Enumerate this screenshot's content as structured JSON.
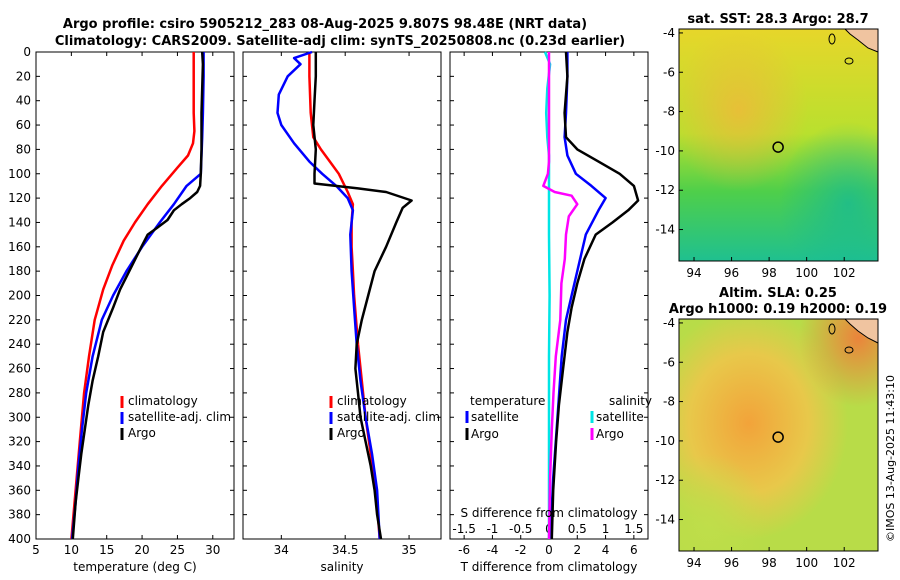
{
  "header": {
    "title_line1": "Argo profile: csiro 5905212_283 08-Aug-2025 9.807S 98.48E (NRT data)",
    "title_line2": "Climatology: CARS2009. Satellite-adj clim: synTS_20250808.nc (0.23d earlier)"
  },
  "colors": {
    "climatology": "#ff0000",
    "satellite": "#0000ff",
    "argo": "#000000",
    "sal_satellite": "#00e5e5",
    "sal_argo": "#ff00ff"
  },
  "watermark": "©IMOS 13-Aug-2025 11:43:10",
  "chart_data": [
    {
      "id": "temperature",
      "type": "line",
      "xlabel": "temperature (deg C)",
      "ylabel": "",
      "xlim": [
        5,
        33
      ],
      "ylim": [
        0,
        400
      ],
      "xticks": [
        5,
        10,
        15,
        20,
        25,
        30
      ],
      "yticks": [
        0,
        20,
        40,
        60,
        80,
        100,
        120,
        140,
        160,
        180,
        200,
        220,
        240,
        260,
        280,
        300,
        320,
        340,
        360,
        380,
        400
      ],
      "legend": [
        "climatology",
        "satellite-adj. clim",
        "Argo"
      ],
      "series": [
        {
          "name": "climatology",
          "color": "#ff0000",
          "x": [
            27.3,
            27.3,
            27.3,
            27.4,
            27.2,
            26.5,
            25.0,
            22.8,
            20.8,
            19.0,
            17.4,
            15.8,
            14.5,
            13.3,
            12.5,
            11.8,
            11.2,
            10.6,
            10.0
          ],
          "y": [
            0,
            20,
            50,
            65,
            75,
            85,
            95,
            110,
            125,
            140,
            155,
            175,
            195,
            220,
            250,
            280,
            320,
            360,
            400
          ]
        },
        {
          "name": "satellite-adj. clim",
          "color": "#0000ff",
          "x": [
            28.7,
            28.7,
            28.6,
            28.5,
            28.4,
            28.3,
            26.3,
            24.5,
            22.5,
            20.0,
            17.8,
            15.9,
            14.3,
            13.0,
            12.1,
            11.5,
            11.0,
            10.6,
            10.1
          ],
          "y": [
            0,
            20,
            50,
            70,
            85,
            100,
            110,
            125,
            140,
            160,
            180,
            200,
            220,
            250,
            280,
            310,
            340,
            370,
            400
          ]
        },
        {
          "name": "Argo",
          "color": "#000000",
          "x": [
            28.5,
            28.6,
            28.5,
            28.4,
            28.4,
            28.3,
            28.2,
            27.8,
            26.8,
            25.6,
            24.5,
            23.6,
            22.0,
            20.8,
            19.9,
            18.2,
            16.9,
            15.9,
            14.5,
            13.8,
            13.0,
            12.4,
            11.9,
            11.4,
            11.0,
            10.6,
            10.2
          ],
          "y": [
            0,
            10,
            30,
            50,
            80,
            100,
            110,
            115,
            120,
            125,
            130,
            138,
            145,
            150,
            160,
            180,
            195,
            210,
            230,
            250,
            270,
            290,
            310,
            330,
            350,
            370,
            400
          ]
        }
      ]
    },
    {
      "id": "salinity",
      "type": "line",
      "xlabel": "salinity",
      "xlim": [
        33.7,
        35.25
      ],
      "ylim": [
        0,
        400
      ],
      "xticks": [
        34,
        34.5,
        35
      ],
      "legend": [
        "climatology",
        "satellite-adj. clim",
        "Argo"
      ],
      "series": [
        {
          "name": "climatology",
          "color": "#ff0000",
          "x": [
            34.22,
            34.22,
            34.23,
            34.25,
            34.31,
            34.38,
            34.45,
            34.52,
            34.56,
            34.55,
            34.55,
            34.56,
            34.57,
            34.6,
            34.63,
            34.66,
            34.7,
            34.74,
            34.77
          ],
          "y": [
            0,
            20,
            50,
            70,
            80,
            90,
            100,
            115,
            125,
            140,
            160,
            180,
            200,
            240,
            270,
            300,
            330,
            360,
            400
          ]
        },
        {
          "name": "satellite-adj. clim",
          "color": "#0000ff",
          "x": [
            34.24,
            34.1,
            34.15,
            34.05,
            33.98,
            33.97,
            34.0,
            34.1,
            34.22,
            34.32,
            34.43,
            34.52,
            34.56,
            34.54,
            34.55,
            34.57,
            34.59,
            34.62,
            34.66,
            34.71,
            34.75,
            34.77
          ],
          "y": [
            0,
            5,
            10,
            20,
            35,
            50,
            60,
            75,
            90,
            100,
            110,
            120,
            130,
            150,
            180,
            210,
            240,
            270,
            300,
            330,
            360,
            400
          ]
        },
        {
          "name": "Argo",
          "color": "#000000",
          "x": [
            34.27,
            34.27,
            34.26,
            34.25,
            34.27,
            34.26,
            34.26,
            34.6,
            34.82,
            35.02,
            34.95,
            34.9,
            34.82,
            34.73,
            34.68,
            34.63,
            34.59,
            34.58,
            34.6,
            34.62,
            34.66,
            34.7,
            34.73,
            34.75,
            34.78
          ],
          "y": [
            0,
            20,
            40,
            60,
            80,
            100,
            108,
            112,
            115,
            122,
            128,
            140,
            160,
            180,
            200,
            220,
            240,
            260,
            280,
            300,
            320,
            340,
            360,
            380,
            400
          ]
        }
      ]
    },
    {
      "id": "differences",
      "type": "line",
      "xlabel": "T difference from climatology",
      "top_label": "S difference from climatology",
      "xlim": [
        -7,
        7
      ],
      "ylim": [
        0,
        400
      ],
      "xticks": [
        -6,
        -4,
        -2,
        0,
        2,
        4,
        6
      ],
      "top_ticks": [
        -1.5,
        -1,
        -0.5,
        0,
        0.5,
        1,
        1.5
      ],
      "top_tick_labels": [
        "-1.5",
        "-1",
        "-0.5",
        "0",
        "0.5",
        "1",
        "1.5"
      ],
      "legend": {
        "temperature_header": "temperature",
        "salinity_header": "salinity",
        "temperature_items": [
          "satellite",
          "Argo"
        ],
        "salinity_items": [
          "satellite",
          "Argo"
        ]
      },
      "series": [
        {
          "name": "temperature satellite",
          "color": "#0000ff",
          "x": [
            1.3,
            1.3,
            1.2,
            1.1,
            1.3,
            1.9,
            3.0,
            4.0,
            3.5,
            2.6,
            2.0,
            1.6,
            1.2,
            0.9,
            0.6,
            0.3,
            0.1
          ],
          "y": [
            0,
            20,
            50,
            70,
            85,
            100,
            110,
            120,
            130,
            150,
            180,
            200,
            220,
            250,
            300,
            350,
            400
          ]
        },
        {
          "name": "temperature Argo",
          "color": "#000000",
          "x": [
            1.2,
            1.3,
            1.1,
            1.2,
            2.0,
            3.5,
            5.0,
            6.0,
            6.3,
            5.6,
            4.5,
            3.3,
            2.5,
            2.0,
            1.6,
            1.3,
            1.0,
            0.7,
            0.5,
            0.3,
            0.2
          ],
          "y": [
            0,
            20,
            50,
            70,
            80,
            90,
            100,
            110,
            122,
            130,
            140,
            150,
            170,
            190,
            210,
            230,
            260,
            290,
            320,
            360,
            400
          ]
        },
        {
          "name": "salinity satellite",
          "color": "#00e5e5",
          "x": [
            -0.07,
            0.02,
            -0.03,
            -0.05,
            -0.03,
            0.0,
            0.0,
            0.0,
            0.01,
            0.0,
            0.0,
            0.0,
            0.0
          ],
          "y": [
            0,
            10,
            30,
            50,
            70,
            85,
            100,
            150,
            200,
            250,
            300,
            350,
            400
          ]
        },
        {
          "name": "salinity Argo",
          "color": "#ff00ff",
          "x": [
            0.0,
            0.0,
            0.0,
            -0.02,
            -0.1,
            0.1,
            0.4,
            0.5,
            0.35,
            0.3,
            0.28,
            0.22,
            0.2,
            0.12,
            0.08,
            0.05,
            0.02,
            0.0
          ],
          "y": [
            0,
            50,
            90,
            100,
            110,
            115,
            118,
            125,
            135,
            150,
            170,
            190,
            220,
            250,
            280,
            310,
            350,
            400
          ]
        }
      ]
    },
    {
      "id": "sst_map",
      "type": "heatmap",
      "title": "sat. SST: 28.3 Argo: 28.7",
      "xticks": [
        94,
        96,
        98,
        100,
        102
      ],
      "yticks": [
        -4,
        -6,
        -8,
        -10,
        -12,
        -14
      ],
      "xlim": [
        93.2,
        103.8
      ],
      "ylim": [
        -15.6,
        -3.8
      ],
      "argo_position": {
        "lon": 98.48,
        "lat": -9.807
      }
    },
    {
      "id": "sla_map",
      "type": "heatmap",
      "title_line1": "Altim. SLA: 0.25",
      "title_line2": "Argo h1000: 0.19 h2000: 0.19",
      "xticks": [
        94,
        96,
        98,
        100,
        102
      ],
      "yticks": [
        -4,
        -6,
        -8,
        -10,
        -12,
        -14
      ],
      "xlim": [
        93.2,
        103.8
      ],
      "ylim": [
        -15.6,
        -3.8
      ],
      "argo_position": {
        "lon": 98.48,
        "lat": -9.807
      }
    }
  ]
}
